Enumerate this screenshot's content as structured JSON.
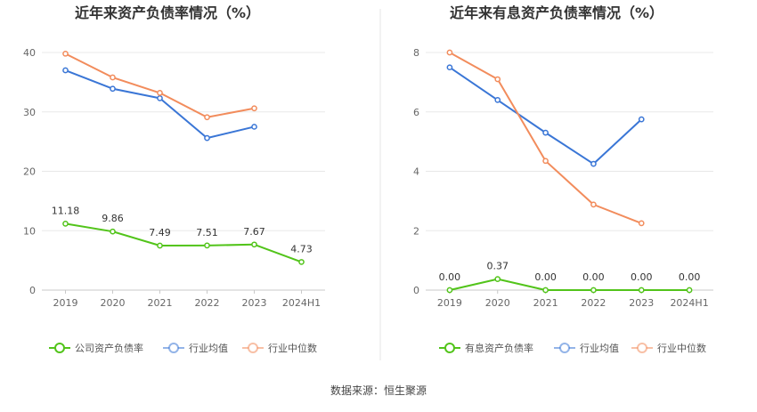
{
  "source_label": "数据来源：恒生聚源",
  "chart_data": [
    {
      "type": "line",
      "title": "近年来资产负债率情况（%）",
      "categories": [
        "2019",
        "2020",
        "2021",
        "2022",
        "2023",
        "2024H1"
      ],
      "ylim": [
        0,
        40
      ],
      "yticks": [
        0,
        10,
        20,
        30,
        40
      ],
      "grid": true,
      "legend_position": "bottom",
      "series": [
        {
          "name": "公司资产负债率",
          "color": "#52c41a",
          "values": [
            11.18,
            9.86,
            7.49,
            7.51,
            7.67,
            4.73
          ],
          "labels": [
            "11.18",
            "9.86",
            "7.49",
            "7.51",
            "7.67",
            "4.73"
          ]
        },
        {
          "name": "行业均值",
          "color": "#3a76d6",
          "values": [
            37.0,
            33.9,
            32.3,
            25.6,
            27.5,
            null
          ]
        },
        {
          "name": "行业中位数",
          "color": "#f28c5c",
          "values": [
            39.8,
            35.8,
            33.2,
            29.1,
            30.6,
            null
          ]
        }
      ]
    },
    {
      "type": "line",
      "title": "近年来有息资产负债率情况（%）",
      "categories": [
        "2019",
        "2020",
        "2021",
        "2022",
        "2023",
        "2024H1"
      ],
      "ylim": [
        0,
        8
      ],
      "yticks": [
        0,
        2,
        4,
        6,
        8
      ],
      "grid": true,
      "legend_position": "bottom",
      "series": [
        {
          "name": "有息资产负债率",
          "color": "#52c41a",
          "values": [
            0.0,
            0.37,
            0.0,
            0.0,
            0.0,
            0.0
          ],
          "labels": [
            "0.00",
            "0.37",
            "0.00",
            "0.00",
            "0.00",
            "0.00"
          ]
        },
        {
          "name": "行业均值",
          "color": "#3a76d6",
          "values": [
            7.5,
            6.4,
            5.3,
            4.25,
            5.75,
            null
          ]
        },
        {
          "name": "行业中位数",
          "color": "#f28c5c",
          "values": [
            8.0,
            7.1,
            4.35,
            2.88,
            2.25,
            null
          ]
        }
      ]
    }
  ]
}
